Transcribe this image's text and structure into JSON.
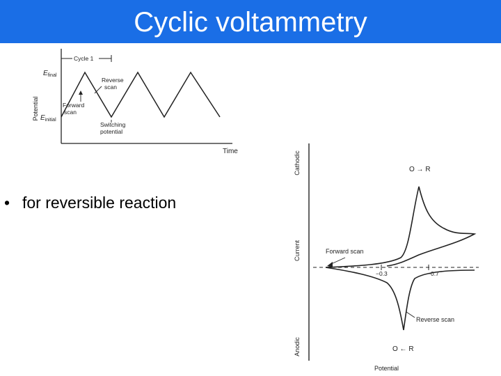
{
  "header": {
    "title": "Cyclic voltammetry"
  },
  "potential_time_figure": {
    "ylabel": "Potential",
    "xlabel": "Time",
    "e_final_main": "E",
    "e_final_sub": "final",
    "e_initial_main": "E",
    "e_initial_sub": "initial",
    "cycle_label": "Cycle 1",
    "reverse_scan_line1": "Reverse",
    "reverse_scan_line2": "scan",
    "forward_scan_line1": "Forward",
    "forward_scan_line2": "scan",
    "switching_line1": "Switching",
    "switching_line2": "potential"
  },
  "voltammogram_figure": {
    "ylabel": "Current",
    "y_top_label": "Cathodic",
    "y_bottom_label": "Anodic",
    "xlabel": "Potential",
    "top_reaction": "O → R",
    "bottom_reaction": "O ← R",
    "forward_scan_label": "Forward scan",
    "reverse_scan_label": "Reverse scan",
    "tick_1": "−0.3",
    "tick_2": "−0.7"
  },
  "bullets": [
    {
      "marker": "•",
      "text": "for reversible reaction"
    }
  ]
}
